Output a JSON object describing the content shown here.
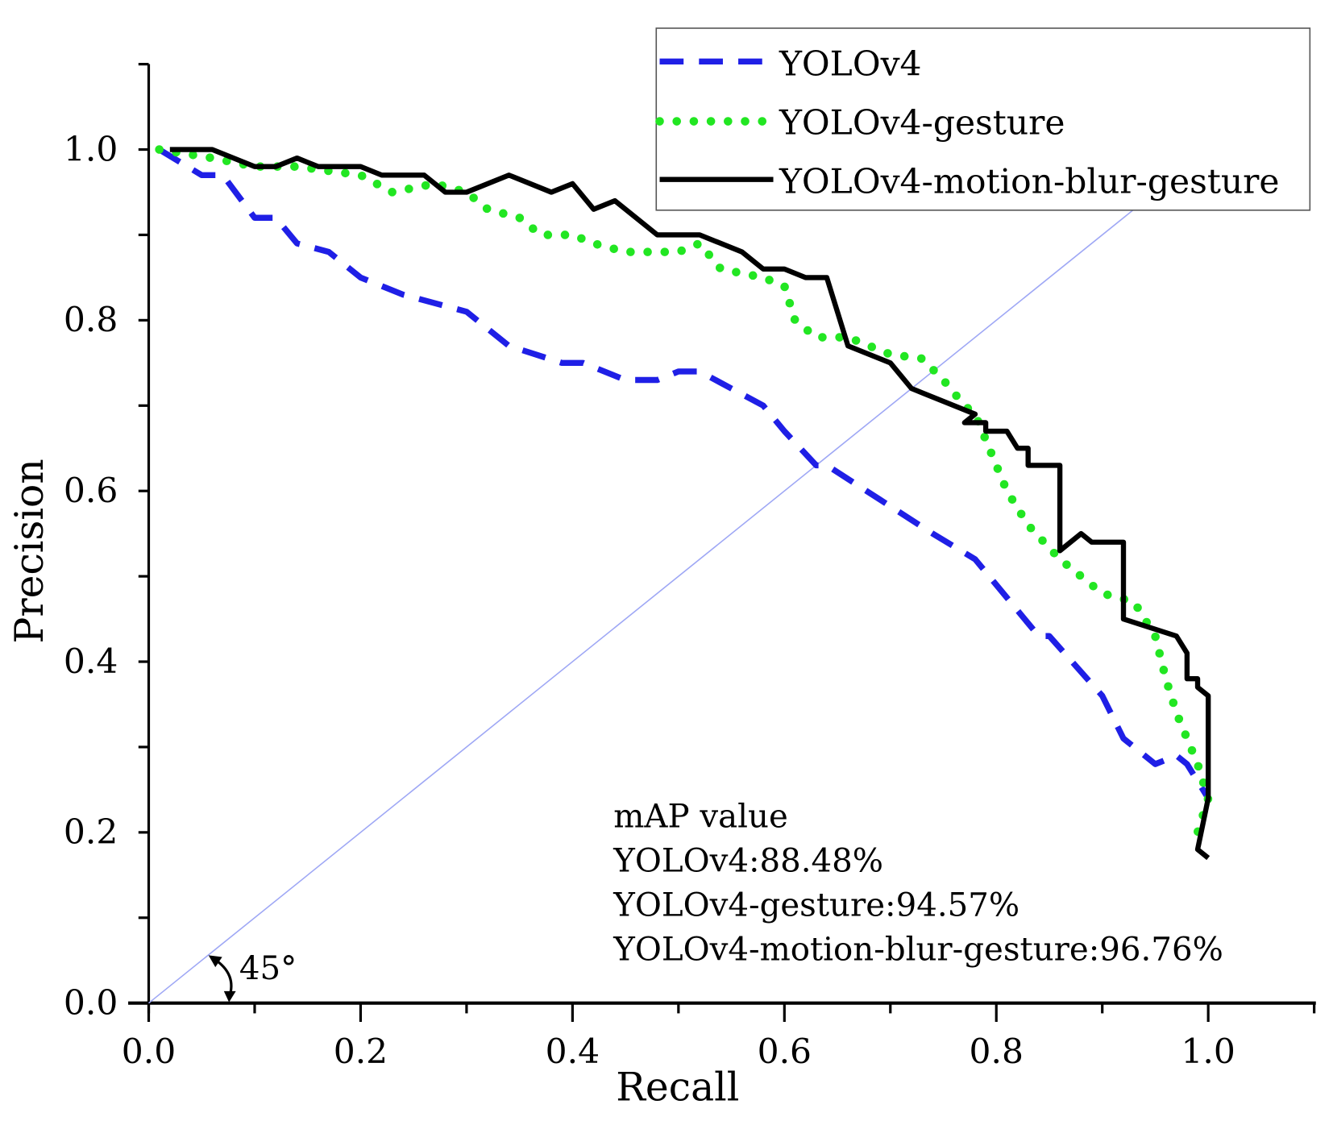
{
  "chart_data": {
    "type": "line",
    "title": "",
    "xlabel": "Recall",
    "ylabel": "Precision",
    "xlim": [
      0,
      1.1
    ],
    "ylim": [
      0,
      1.1
    ],
    "grid": false,
    "legend_placement": "top-right",
    "xticks": [
      "0.0",
      "0.2",
      "0.4",
      "0.6",
      "0.8",
      "1.0"
    ],
    "yticks": [
      "0.0",
      "0.2",
      "0.4",
      "0.6",
      "0.8",
      "1.0"
    ],
    "series": [
      {
        "name": "YOLOv4",
        "color": "#1f1fe6",
        "style": "dashed",
        "x": [
          0.01,
          0.05,
          0.07,
          0.1,
          0.12,
          0.14,
          0.17,
          0.2,
          0.24,
          0.3,
          0.34,
          0.39,
          0.41,
          0.45,
          0.48,
          0.5,
          0.52,
          0.55,
          0.58,
          0.6,
          0.63,
          0.64,
          0.69,
          0.74,
          0.78,
          0.82,
          0.84,
          0.85,
          0.9,
          0.92,
          0.95,
          0.97,
          0.98,
          1.0
        ],
        "y": [
          1.0,
          0.97,
          0.97,
          0.92,
          0.92,
          0.89,
          0.88,
          0.85,
          0.83,
          0.81,
          0.77,
          0.75,
          0.75,
          0.73,
          0.73,
          0.74,
          0.74,
          0.72,
          0.7,
          0.67,
          0.63,
          0.63,
          0.59,
          0.55,
          0.52,
          0.46,
          0.43,
          0.43,
          0.36,
          0.31,
          0.28,
          0.29,
          0.28,
          0.24
        ]
      },
      {
        "name": "YOLOv4-gesture",
        "color": "#22e622",
        "style": "dotted",
        "x": [
          0.01,
          0.06,
          0.1,
          0.14,
          0.2,
          0.23,
          0.27,
          0.3,
          0.32,
          0.35,
          0.37,
          0.4,
          0.42,
          0.45,
          0.5,
          0.52,
          0.54,
          0.58,
          0.6,
          0.61,
          0.63,
          0.66,
          0.7,
          0.73,
          0.75,
          0.77,
          0.78,
          0.8,
          0.81,
          0.83,
          0.86,
          0.9,
          0.93,
          0.95,
          0.96,
          0.97,
          0.99,
          1.0,
          0.99
        ],
        "y": [
          1.0,
          0.99,
          0.98,
          0.98,
          0.97,
          0.95,
          0.96,
          0.95,
          0.93,
          0.92,
          0.9,
          0.9,
          0.89,
          0.88,
          0.88,
          0.89,
          0.86,
          0.85,
          0.84,
          0.8,
          0.78,
          0.78,
          0.76,
          0.755,
          0.73,
          0.7,
          0.69,
          0.63,
          0.6,
          0.56,
          0.52,
          0.48,
          0.47,
          0.43,
          0.38,
          0.34,
          0.28,
          0.24,
          0.2
        ]
      },
      {
        "name": "YOLOv4-motion-blur-gesture",
        "color": "#000000",
        "style": "solid",
        "x": [
          0.02,
          0.06,
          0.1,
          0.12,
          0.14,
          0.16,
          0.2,
          0.22,
          0.26,
          0.28,
          0.3,
          0.34,
          0.38,
          0.4,
          0.42,
          0.44,
          0.48,
          0.52,
          0.56,
          0.58,
          0.6,
          0.62,
          0.64,
          0.66,
          0.7,
          0.72,
          0.78,
          0.77,
          0.79,
          0.79,
          0.81,
          0.82,
          0.83,
          0.83,
          0.86,
          0.86,
          0.88,
          0.89,
          0.92,
          0.92,
          0.97,
          0.98,
          0.98,
          0.99,
          0.99,
          1.0,
          1.0,
          0.99,
          1.0
        ],
        "y": [
          1.0,
          1.0,
          0.98,
          0.98,
          0.99,
          0.98,
          0.98,
          0.97,
          0.97,
          0.95,
          0.95,
          0.97,
          0.95,
          0.96,
          0.93,
          0.94,
          0.9,
          0.9,
          0.88,
          0.86,
          0.86,
          0.85,
          0.85,
          0.77,
          0.75,
          0.72,
          0.69,
          0.68,
          0.68,
          0.67,
          0.67,
          0.65,
          0.65,
          0.63,
          0.63,
          0.53,
          0.55,
          0.54,
          0.54,
          0.45,
          0.43,
          0.41,
          0.38,
          0.38,
          0.37,
          0.36,
          0.24,
          0.18,
          0.17
        ]
      }
    ],
    "reference_line": {
      "label": "45°",
      "x": [
        0,
        0.93
      ],
      "y": [
        0,
        0.93
      ],
      "color": "#9fa8f5"
    },
    "annotations": {
      "title": "mAP value",
      "lines": [
        "YOLOv4:88.48%",
        "YOLOv4-gesture:94.57%",
        "YOLOv4-motion-blur-gesture:96.76%"
      ]
    }
  }
}
